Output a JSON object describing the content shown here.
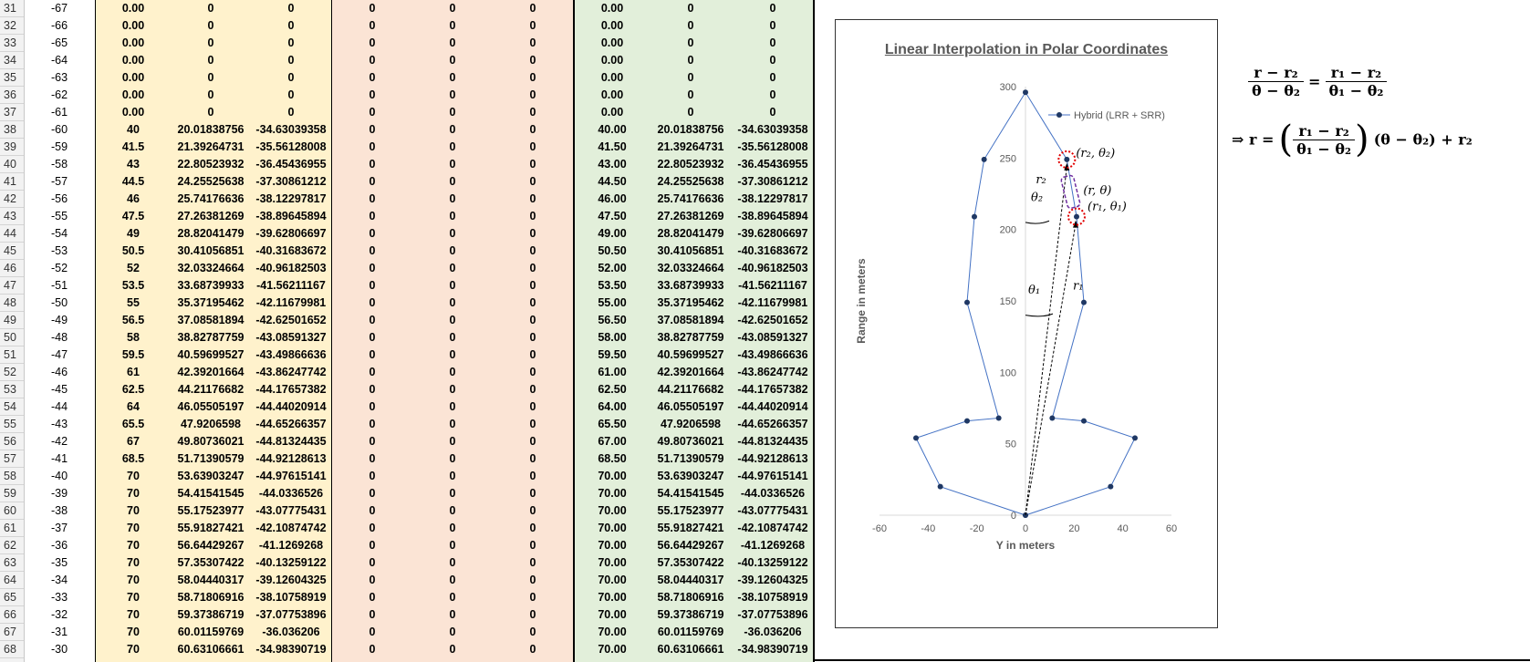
{
  "sheet": {
    "rows": [
      {
        "rn": "31",
        "b": "-67",
        "c": "0.00",
        "d": "0",
        "e": "0",
        "f": "0",
        "g": "0",
        "h": "0",
        "i": "0.00",
        "j": "0",
        "k": "0"
      },
      {
        "rn": "32",
        "b": "-66",
        "c": "0.00",
        "d": "0",
        "e": "0",
        "f": "0",
        "g": "0",
        "h": "0",
        "i": "0.00",
        "j": "0",
        "k": "0"
      },
      {
        "rn": "33",
        "b": "-65",
        "c": "0.00",
        "d": "0",
        "e": "0",
        "f": "0",
        "g": "0",
        "h": "0",
        "i": "0.00",
        "j": "0",
        "k": "0"
      },
      {
        "rn": "34",
        "b": "-64",
        "c": "0.00",
        "d": "0",
        "e": "0",
        "f": "0",
        "g": "0",
        "h": "0",
        "i": "0.00",
        "j": "0",
        "k": "0"
      },
      {
        "rn": "35",
        "b": "-63",
        "c": "0.00",
        "d": "0",
        "e": "0",
        "f": "0",
        "g": "0",
        "h": "0",
        "i": "0.00",
        "j": "0",
        "k": "0"
      },
      {
        "rn": "36",
        "b": "-62",
        "c": "0.00",
        "d": "0",
        "e": "0",
        "f": "0",
        "g": "0",
        "h": "0",
        "i": "0.00",
        "j": "0",
        "k": "0"
      },
      {
        "rn": "37",
        "b": "-61",
        "c": "0.00",
        "d": "0",
        "e": "0",
        "f": "0",
        "g": "0",
        "h": "0",
        "i": "0.00",
        "j": "0",
        "k": "0"
      },
      {
        "rn": "38",
        "b": "-60",
        "c": "40",
        "d": "20.01838756",
        "e": "-34.63039358",
        "f": "0",
        "g": "0",
        "h": "0",
        "i": "40.00",
        "j": "20.01838756",
        "k": "-34.63039358"
      },
      {
        "rn": "39",
        "b": "-59",
        "c": "41.5",
        "d": "21.39264731",
        "e": "-35.56128008",
        "f": "0",
        "g": "0",
        "h": "0",
        "i": "41.50",
        "j": "21.39264731",
        "k": "-35.56128008"
      },
      {
        "rn": "40",
        "b": "-58",
        "c": "43",
        "d": "22.80523932",
        "e": "-36.45436955",
        "f": "0",
        "g": "0",
        "h": "0",
        "i": "43.00",
        "j": "22.80523932",
        "k": "-36.45436955"
      },
      {
        "rn": "41",
        "b": "-57",
        "c": "44.5",
        "d": "24.25525638",
        "e": "-37.30861212",
        "f": "0",
        "g": "0",
        "h": "0",
        "i": "44.50",
        "j": "24.25525638",
        "k": "-37.30861212"
      },
      {
        "rn": "42",
        "b": "-56",
        "c": "46",
        "d": "25.74176636",
        "e": "-38.12297817",
        "f": "0",
        "g": "0",
        "h": "0",
        "i": "46.00",
        "j": "25.74176636",
        "k": "-38.12297817"
      },
      {
        "rn": "43",
        "b": "-55",
        "c": "47.5",
        "d": "27.26381269",
        "e": "-38.89645894",
        "f": "0",
        "g": "0",
        "h": "0",
        "i": "47.50",
        "j": "27.26381269",
        "k": "-38.89645894"
      },
      {
        "rn": "44",
        "b": "-54",
        "c": "49",
        "d": "28.82041479",
        "e": "-39.62806697",
        "f": "0",
        "g": "0",
        "h": "0",
        "i": "49.00",
        "j": "28.82041479",
        "k": "-39.62806697"
      },
      {
        "rn": "45",
        "b": "-53",
        "c": "50.5",
        "d": "30.41056851",
        "e": "-40.31683672",
        "f": "0",
        "g": "0",
        "h": "0",
        "i": "50.50",
        "j": "30.41056851",
        "k": "-40.31683672"
      },
      {
        "rn": "46",
        "b": "-52",
        "c": "52",
        "d": "32.03324664",
        "e": "-40.96182503",
        "f": "0",
        "g": "0",
        "h": "0",
        "i": "52.00",
        "j": "32.03324664",
        "k": "-40.96182503"
      },
      {
        "rn": "47",
        "b": "-51",
        "c": "53.5",
        "d": "33.68739933",
        "e": "-41.56211167",
        "f": "0",
        "g": "0",
        "h": "0",
        "i": "53.50",
        "j": "33.68739933",
        "k": "-41.56211167"
      },
      {
        "rn": "48",
        "b": "-50",
        "c": "55",
        "d": "35.37195462",
        "e": "-42.11679981",
        "f": "0",
        "g": "0",
        "h": "0",
        "i": "55.00",
        "j": "35.37195462",
        "k": "-42.11679981"
      },
      {
        "rn": "49",
        "b": "-49",
        "c": "56.5",
        "d": "37.08581894",
        "e": "-42.62501652",
        "f": "0",
        "g": "0",
        "h": "0",
        "i": "56.50",
        "j": "37.08581894",
        "k": "-42.62501652"
      },
      {
        "rn": "50",
        "b": "-48",
        "c": "58",
        "d": "38.82787759",
        "e": "-43.08591327",
        "f": "0",
        "g": "0",
        "h": "0",
        "i": "58.00",
        "j": "38.82787759",
        "k": "-43.08591327"
      },
      {
        "rn": "51",
        "b": "-47",
        "c": "59.5",
        "d": "40.59699527",
        "e": "-43.49866636",
        "f": "0",
        "g": "0",
        "h": "0",
        "i": "59.50",
        "j": "40.59699527",
        "k": "-43.49866636"
      },
      {
        "rn": "52",
        "b": "-46",
        "c": "61",
        "d": "42.39201664",
        "e": "-43.86247742",
        "f": "0",
        "g": "0",
        "h": "0",
        "i": "61.00",
        "j": "42.39201664",
        "k": "-43.86247742"
      },
      {
        "rn": "53",
        "b": "-45",
        "c": "62.5",
        "d": "44.21176682",
        "e": "-44.17657382",
        "f": "0",
        "g": "0",
        "h": "0",
        "i": "62.50",
        "j": "44.21176682",
        "k": "-44.17657382"
      },
      {
        "rn": "54",
        "b": "-44",
        "c": "64",
        "d": "46.05505197",
        "e": "-44.44020914",
        "f": "0",
        "g": "0",
        "h": "0",
        "i": "64.00",
        "j": "46.05505197",
        "k": "-44.44020914"
      },
      {
        "rn": "55",
        "b": "-43",
        "c": "65.5",
        "d": "47.9206598",
        "e": "-44.65266357",
        "f": "0",
        "g": "0",
        "h": "0",
        "i": "65.50",
        "j": "47.9206598",
        "k": "-44.65266357"
      },
      {
        "rn": "56",
        "b": "-42",
        "c": "67",
        "d": "49.80736021",
        "e": "-44.81324435",
        "f": "0",
        "g": "0",
        "h": "0",
        "i": "67.00",
        "j": "49.80736021",
        "k": "-44.81324435"
      },
      {
        "rn": "57",
        "b": "-41",
        "c": "68.5",
        "d": "51.71390579",
        "e": "-44.92128613",
        "f": "0",
        "g": "0",
        "h": "0",
        "i": "68.50",
        "j": "51.71390579",
        "k": "-44.92128613"
      },
      {
        "rn": "58",
        "b": "-40",
        "c": "70",
        "d": "53.63903247",
        "e": "-44.97615141",
        "f": "0",
        "g": "0",
        "h": "0",
        "i": "70.00",
        "j": "53.63903247",
        "k": "-44.97615141"
      },
      {
        "rn": "59",
        "b": "-39",
        "c": "70",
        "d": "54.41541545",
        "e": "-44.0336526",
        "f": "0",
        "g": "0",
        "h": "0",
        "i": "70.00",
        "j": "54.41541545",
        "k": "-44.0336526"
      },
      {
        "rn": "60",
        "b": "-38",
        "c": "70",
        "d": "55.17523977",
        "e": "-43.07775431",
        "f": "0",
        "g": "0",
        "h": "0",
        "i": "70.00",
        "j": "55.17523977",
        "k": "-43.07775431"
      },
      {
        "rn": "61",
        "b": "-37",
        "c": "70",
        "d": "55.91827421",
        "e": "-42.10874742",
        "f": "0",
        "g": "0",
        "h": "0",
        "i": "70.00",
        "j": "55.91827421",
        "k": "-42.10874742"
      },
      {
        "rn": "62",
        "b": "-36",
        "c": "70",
        "d": "56.64429267",
        "e": "-41.1269268",
        "f": "0",
        "g": "0",
        "h": "0",
        "i": "70.00",
        "j": "56.64429267",
        "k": "-41.1269268"
      },
      {
        "rn": "63",
        "b": "-35",
        "c": "70",
        "d": "57.35307422",
        "e": "-40.13259122",
        "f": "0",
        "g": "0",
        "h": "0",
        "i": "70.00",
        "j": "57.35307422",
        "k": "-40.13259122"
      },
      {
        "rn": "64",
        "b": "-34",
        "c": "70",
        "d": "58.04440317",
        "e": "-39.12604325",
        "f": "0",
        "g": "0",
        "h": "0",
        "i": "70.00",
        "j": "58.04440317",
        "k": "-39.12604325"
      },
      {
        "rn": "65",
        "b": "-33",
        "c": "70",
        "d": "58.71806916",
        "e": "-38.10758919",
        "f": "0",
        "g": "0",
        "h": "0",
        "i": "70.00",
        "j": "58.71806916",
        "k": "-38.10758919"
      },
      {
        "rn": "66",
        "b": "-32",
        "c": "70",
        "d": "59.37386719",
        "e": "-37.07753896",
        "f": "0",
        "g": "0",
        "h": "0",
        "i": "70.00",
        "j": "59.37386719",
        "k": "-37.07753896"
      },
      {
        "rn": "67",
        "b": "-31",
        "c": "70",
        "d": "60.01159769",
        "e": "-36.036206",
        "f": "0",
        "g": "0",
        "h": "0",
        "i": "70.00",
        "j": "60.01159769",
        "k": "-36.036206"
      },
      {
        "rn": "68",
        "b": "-30",
        "c": "70",
        "d": "60.63106661",
        "e": "-34.98390719",
        "f": "0",
        "g": "0",
        "h": "0",
        "i": "70.00",
        "j": "60.63106661",
        "k": "-34.98390719"
      }
    ],
    "colors": {
      "yellow": "#fff2cc",
      "salmon": "#fbe4d5",
      "green": "#e2efda"
    }
  },
  "chart_data": {
    "type": "scatter",
    "title": "Linear Interpolation in Polar Coordinates",
    "xlabel": "Y in meters",
    "ylabel": "Range in meters",
    "xlim": [
      -60,
      60
    ],
    "ylim": [
      0,
      300
    ],
    "xticks": [
      "-60",
      "-40",
      "-20",
      "0",
      "20",
      "40",
      "60"
    ],
    "yticks": [
      "0",
      "50",
      "100",
      "150",
      "200",
      "250",
      "300"
    ],
    "legend": "top-right",
    "series": [
      {
        "name": "Hybrid (LRR + SRR)",
        "color": "#4472c4",
        "points": [
          [
            0,
            0
          ],
          [
            -35,
            20
          ],
          [
            -45,
            54
          ],
          [
            -24,
            66
          ],
          [
            -11,
            68
          ],
          [
            -24,
            149
          ],
          [
            -21,
            209
          ],
          [
            -17,
            249
          ],
          [
            0,
            296
          ],
          [
            17,
            249
          ],
          [
            21,
            209
          ],
          [
            24,
            149
          ],
          [
            11,
            68
          ],
          [
            24,
            66
          ],
          [
            45,
            54
          ],
          [
            35,
            20
          ],
          [
            0,
            0
          ]
        ]
      }
    ],
    "annotations": {
      "p2": "(r₂, θ₂)",
      "p": "(r, θ)",
      "p1": "(r₁, θ₁)",
      "r2": "r₂",
      "r1": "r₁",
      "theta2": "θ₂",
      "theta1": "θ₁"
    }
  },
  "formula": {
    "line1_lhs_num": "r − r₂",
    "line1_lhs_den": "θ − θ₂",
    "eq": "=",
    "line1_rhs_num": "r₁ − r₂",
    "line1_rhs_den": "θ₁ − θ₂",
    "line2_prefix": "⇒ r =",
    "line2_num": "r₁ − r₂",
    "line2_den": "θ₁ − θ₂",
    "line2_suffix": "(θ − θ₂) + r₂"
  }
}
